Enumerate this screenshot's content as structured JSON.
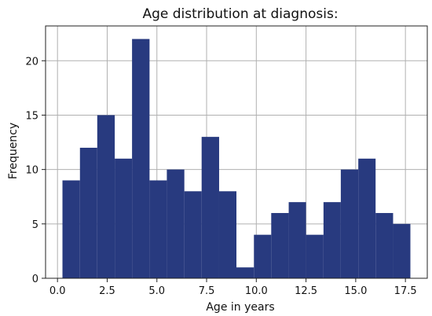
{
  "chart_data": {
    "type": "bar",
    "title": "Age distribution at diagnosis:",
    "xlabel": "Age in years",
    "ylabel": "Frequency",
    "xlim": [
      -0.6,
      18.6
    ],
    "ylim": [
      0,
      23.2
    ],
    "x_ticks": [
      0.0,
      2.5,
      5.0,
      7.5,
      10.0,
      12.5,
      15.0,
      17.5
    ],
    "x_tick_labels": [
      "0.0",
      "2.5",
      "5.0",
      "7.5",
      "10.0",
      "12.5",
      "15.0",
      "17.5"
    ],
    "y_ticks": [
      0,
      5,
      10,
      15,
      20
    ],
    "y_tick_labels": [
      "0",
      "5",
      "10",
      "15",
      "20"
    ],
    "grid": true,
    "bar_color": "#283a7f",
    "bins": [
      {
        "x0": 0.25,
        "x1": 1.13,
        "value": 9
      },
      {
        "x0": 1.13,
        "x1": 2.0,
        "value": 12
      },
      {
        "x0": 2.0,
        "x1": 2.88,
        "value": 15
      },
      {
        "x0": 2.88,
        "x1": 3.75,
        "value": 11
      },
      {
        "x0": 3.75,
        "x1": 4.63,
        "value": 22
      },
      {
        "x0": 4.63,
        "x1": 5.5,
        "value": 9
      },
      {
        "x0": 5.5,
        "x1": 6.38,
        "value": 10
      },
      {
        "x0": 6.38,
        "x1": 7.25,
        "value": 8
      },
      {
        "x0": 7.25,
        "x1": 8.13,
        "value": 13
      },
      {
        "x0": 8.13,
        "x1": 9.0,
        "value": 8
      },
      {
        "x0": 9.0,
        "x1": 9.88,
        "value": 1
      },
      {
        "x0": 9.88,
        "x1": 10.75,
        "value": 4
      },
      {
        "x0": 10.75,
        "x1": 11.63,
        "value": 6
      },
      {
        "x0": 11.63,
        "x1": 12.5,
        "value": 7
      },
      {
        "x0": 12.5,
        "x1": 13.38,
        "value": 4
      },
      {
        "x0": 13.38,
        "x1": 14.25,
        "value": 7
      },
      {
        "x0": 14.25,
        "x1": 15.13,
        "value": 10
      },
      {
        "x0": 15.13,
        "x1": 16.0,
        "value": 11
      },
      {
        "x0": 16.0,
        "x1": 16.88,
        "value": 6
      },
      {
        "x0": 16.88,
        "x1": 17.75,
        "value": 5
      }
    ]
  }
}
